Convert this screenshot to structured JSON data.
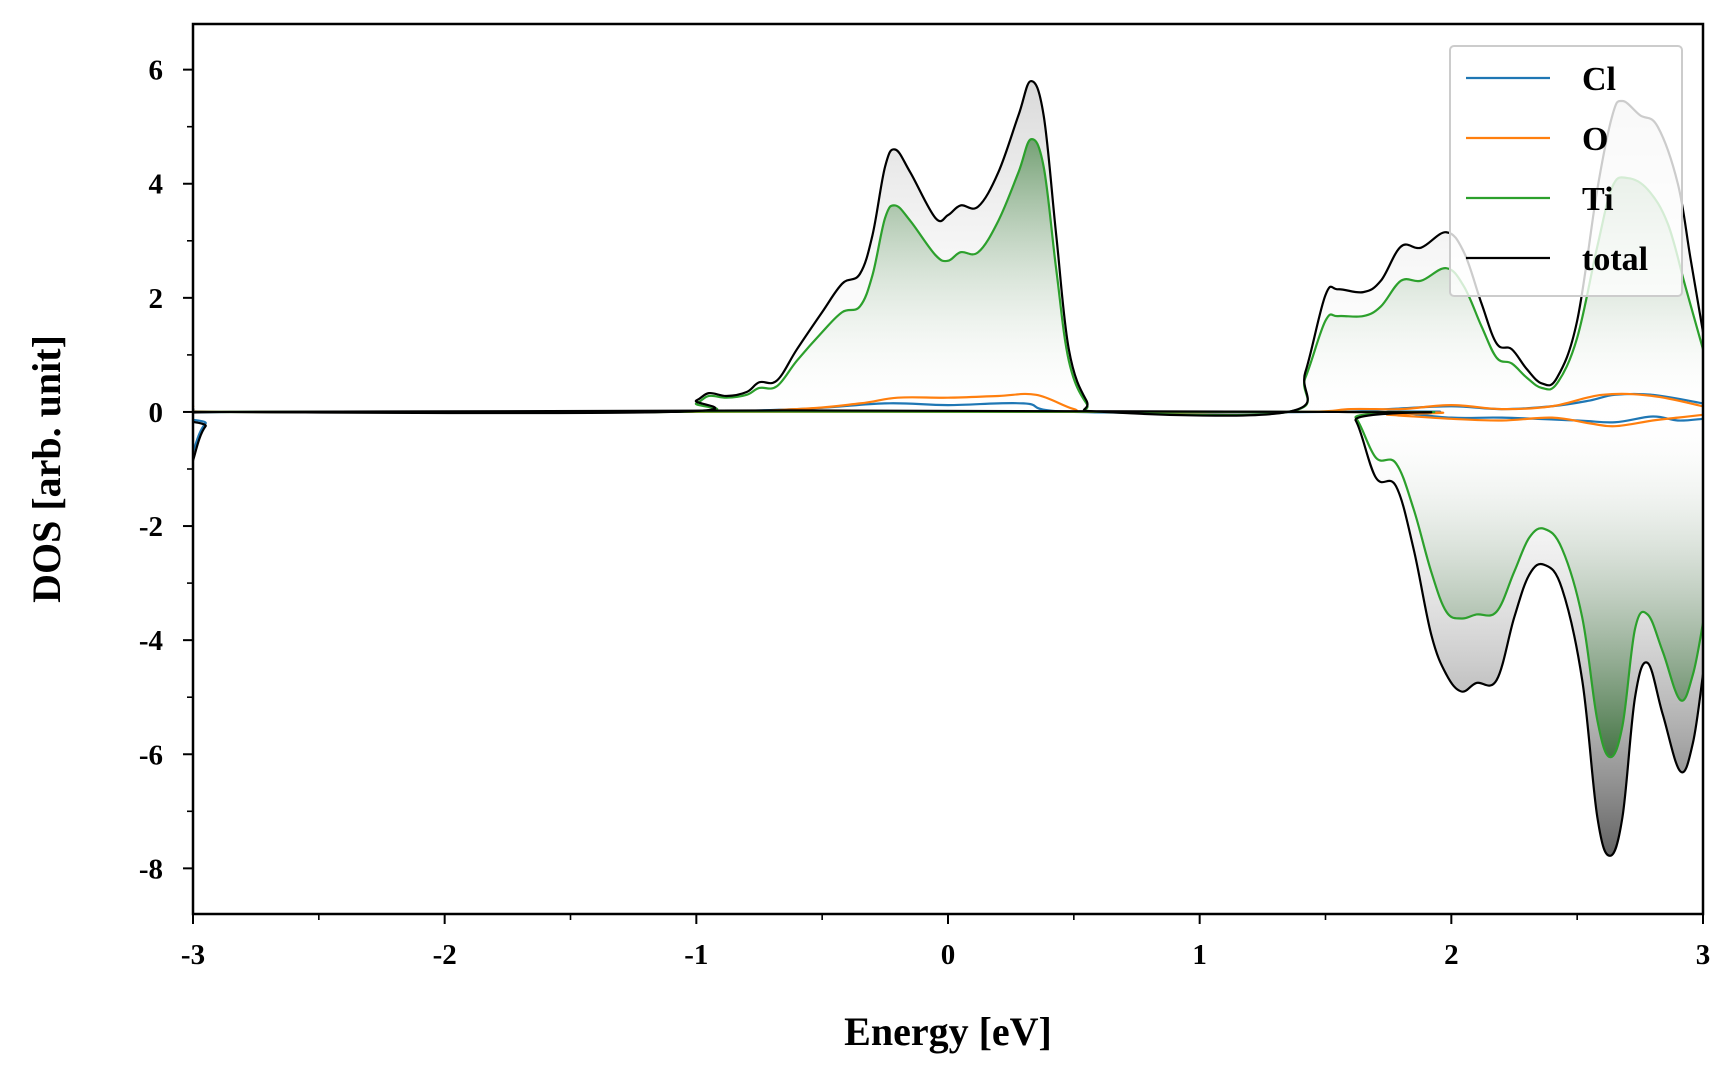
{
  "chart_data": {
    "type": "line",
    "xlabel": "Energy [eV]",
    "ylabel": "DOS [arb. unit]",
    "xlim": [
      -3,
      3
    ],
    "ylim": [
      -8.8,
      6.8
    ],
    "x_ticks": [
      -3,
      -2,
      -1,
      0,
      1,
      2,
      3
    ],
    "x_tick_labels": [
      "-3",
      "-2",
      "-1",
      "0",
      "1",
      "2",
      "3"
    ],
    "y_ticks": [
      -8,
      -6,
      -4,
      -2,
      0,
      2,
      4,
      6
    ],
    "y_tick_labels": [
      "-8",
      "-6",
      "-4",
      "-2",
      "0",
      "2",
      "4",
      "6"
    ],
    "grid": false,
    "legend_position": "top-right",
    "fill_under": [
      "total",
      "Ti"
    ],
    "series": [
      {
        "name": "Cl",
        "color": "#1f77b4",
        "up": [
          [
            -3,
            0.05
          ],
          [
            -2.9,
            0
          ],
          [
            1.5,
            0
          ],
          [
            1.75,
            0.05
          ],
          [
            2.0,
            0.1
          ],
          [
            2.2,
            0.05
          ],
          [
            2.4,
            0.1
          ],
          [
            2.55,
            0.2
          ],
          [
            2.65,
            0.3
          ],
          [
            2.8,
            0.3
          ],
          [
            3,
            0.15
          ]
        ],
        "down": [
          [
            -3,
            -0.7
          ],
          [
            -2.95,
            -0.2
          ],
          [
            -2.85,
            0
          ],
          [
            1.55,
            0
          ],
          [
            1.75,
            0.0
          ],
          [
            2.0,
            -0.1
          ],
          [
            2.2,
            -0.1
          ],
          [
            2.5,
            -0.15
          ],
          [
            2.65,
            -0.18
          ],
          [
            2.8,
            -0.08
          ],
          [
            2.9,
            -0.15
          ],
          [
            3,
            -0.12
          ]
        ],
        "up_peaks": [
          [
            -1.2,
            0
          ],
          [
            -0.6,
            0.05
          ],
          [
            -0.25,
            0.15
          ],
          [
            0,
            0.12
          ],
          [
            0.3,
            0.15
          ],
          [
            0.5,
            0
          ]
        ]
      },
      {
        "name": "O",
        "color": "#ff7f0e",
        "up": [
          [
            -3,
            0.1
          ],
          [
            -2.9,
            0
          ],
          [
            -1.1,
            0
          ],
          [
            -0.6,
            0.05
          ],
          [
            -0.35,
            0.15
          ],
          [
            -0.2,
            0.25
          ],
          [
            0,
            0.25
          ],
          [
            0.2,
            0.28
          ],
          [
            0.35,
            0.3
          ],
          [
            0.5,
            0.05
          ],
          [
            0.6,
            0
          ],
          [
            1.4,
            0
          ],
          [
            1.6,
            0.05
          ],
          [
            1.8,
            0.05
          ],
          [
            2.0,
            0.12
          ],
          [
            2.2,
            0.05
          ],
          [
            2.4,
            0.1
          ],
          [
            2.6,
            0.3
          ],
          [
            2.8,
            0.28
          ],
          [
            3,
            0.1
          ]
        ],
        "down": [
          [
            -3,
            0
          ],
          [
            1.55,
            0
          ],
          [
            1.75,
            -0.05
          ],
          [
            2.0,
            -0.12
          ],
          [
            2.2,
            -0.15
          ],
          [
            2.4,
            -0.1
          ],
          [
            2.55,
            -0.2
          ],
          [
            2.65,
            -0.25
          ],
          [
            2.8,
            -0.15
          ],
          [
            2.9,
            -0.1
          ],
          [
            3,
            -0.05
          ]
        ]
      },
      {
        "name": "Ti",
        "color": "#2ca02c",
        "up": [
          [
            -3,
            0
          ],
          [
            -1.1,
            0
          ],
          [
            -1.0,
            0.15
          ],
          [
            -0.95,
            0.28
          ],
          [
            -0.88,
            0.25
          ],
          [
            -0.8,
            0.3
          ],
          [
            -0.75,
            0.42
          ],
          [
            -0.68,
            0.45
          ],
          [
            -0.6,
            0.9
          ],
          [
            -0.5,
            1.4
          ],
          [
            -0.42,
            1.75
          ],
          [
            -0.35,
            1.85
          ],
          [
            -0.3,
            2.4
          ],
          [
            -0.25,
            3.4
          ],
          [
            -0.21,
            3.62
          ],
          [
            -0.15,
            3.35
          ],
          [
            -0.05,
            2.75
          ],
          [
            0.0,
            2.65
          ],
          [
            0.05,
            2.8
          ],
          [
            0.12,
            2.8
          ],
          [
            0.2,
            3.35
          ],
          [
            0.28,
            4.2
          ],
          [
            0.33,
            4.78
          ],
          [
            0.38,
            4.3
          ],
          [
            0.43,
            2.5
          ],
          [
            0.48,
            0.9
          ],
          [
            0.55,
            0.15
          ],
          [
            0.62,
            0
          ],
          [
            1.35,
            0
          ],
          [
            1.42,
            0.6
          ],
          [
            1.5,
            1.6
          ],
          [
            1.55,
            1.68
          ],
          [
            1.65,
            1.68
          ],
          [
            1.72,
            1.85
          ],
          [
            1.8,
            2.3
          ],
          [
            1.88,
            2.3
          ],
          [
            1.98,
            2.52
          ],
          [
            2.05,
            2.2
          ],
          [
            2.12,
            1.5
          ],
          [
            2.18,
            0.95
          ],
          [
            2.24,
            0.85
          ],
          [
            2.3,
            0.6
          ],
          [
            2.36,
            0.42
          ],
          [
            2.42,
            0.5
          ],
          [
            2.5,
            1.3
          ],
          [
            2.58,
            2.9
          ],
          [
            2.64,
            3.95
          ],
          [
            2.7,
            4.1
          ],
          [
            2.78,
            3.9
          ],
          [
            2.86,
            3.3
          ],
          [
            2.93,
            2.2
          ],
          [
            3,
            1.1
          ]
        ],
        "down": [
          [
            -3,
            0
          ],
          [
            1.55,
            0
          ],
          [
            1.62,
            -0.1
          ],
          [
            1.7,
            -0.8
          ],
          [
            1.78,
            -0.9
          ],
          [
            1.85,
            -1.7
          ],
          [
            1.92,
            -2.8
          ],
          [
            1.98,
            -3.5
          ],
          [
            2.04,
            -3.62
          ],
          [
            2.1,
            -3.55
          ],
          [
            2.18,
            -3.5
          ],
          [
            2.25,
            -2.8
          ],
          [
            2.31,
            -2.2
          ],
          [
            2.37,
            -2.05
          ],
          [
            2.44,
            -2.4
          ],
          [
            2.52,
            -3.6
          ],
          [
            2.58,
            -5.4
          ],
          [
            2.63,
            -6.05
          ],
          [
            2.68,
            -5.5
          ],
          [
            2.73,
            -3.8
          ],
          [
            2.78,
            -3.55
          ],
          [
            2.84,
            -4.2
          ],
          [
            2.91,
            -5.05
          ],
          [
            2.96,
            -4.6
          ],
          [
            3,
            -3.7
          ]
        ]
      },
      {
        "name": "total",
        "color": "#000000",
        "up": [
          [
            -3,
            0.05
          ],
          [
            -2.9,
            0
          ],
          [
            -1.1,
            0
          ],
          [
            -1.0,
            0.2
          ],
          [
            -0.95,
            0.33
          ],
          [
            -0.88,
            0.28
          ],
          [
            -0.8,
            0.35
          ],
          [
            -0.75,
            0.52
          ],
          [
            -0.68,
            0.55
          ],
          [
            -0.6,
            1.1
          ],
          [
            -0.5,
            1.75
          ],
          [
            -0.42,
            2.25
          ],
          [
            -0.35,
            2.42
          ],
          [
            -0.3,
            3.1
          ],
          [
            -0.25,
            4.3
          ],
          [
            -0.21,
            4.6
          ],
          [
            -0.15,
            4.2
          ],
          [
            -0.05,
            3.4
          ],
          [
            0.0,
            3.45
          ],
          [
            0.05,
            3.62
          ],
          [
            0.12,
            3.6
          ],
          [
            0.2,
            4.2
          ],
          [
            0.28,
            5.2
          ],
          [
            0.33,
            5.8
          ],
          [
            0.38,
            5.2
          ],
          [
            0.43,
            3.1
          ],
          [
            0.48,
            1.1
          ],
          [
            0.55,
            0.2
          ],
          [
            0.62,
            0
          ],
          [
            1.35,
            0
          ],
          [
            1.42,
            0.7
          ],
          [
            1.5,
            2.05
          ],
          [
            1.55,
            2.15
          ],
          [
            1.65,
            2.1
          ],
          [
            1.72,
            2.3
          ],
          [
            1.8,
            2.9
          ],
          [
            1.88,
            2.88
          ],
          [
            1.98,
            3.15
          ],
          [
            2.05,
            2.8
          ],
          [
            2.12,
            1.9
          ],
          [
            2.18,
            1.2
          ],
          [
            2.24,
            1.1
          ],
          [
            2.3,
            0.75
          ],
          [
            2.36,
            0.5
          ],
          [
            2.42,
            0.6
          ],
          [
            2.5,
            1.6
          ],
          [
            2.58,
            3.9
          ],
          [
            2.64,
            5.2
          ],
          [
            2.68,
            5.45
          ],
          [
            2.75,
            5.2
          ],
          [
            2.82,
            5.0
          ],
          [
            2.9,
            4.0
          ],
          [
            2.95,
            2.7
          ],
          [
            3,
            1.4
          ]
        ],
        "down": [
          [
            -3,
            -0.85
          ],
          [
            -2.95,
            -0.25
          ],
          [
            -2.85,
            0
          ],
          [
            1.55,
            0
          ],
          [
            1.62,
            -0.15
          ],
          [
            1.7,
            -1.15
          ],
          [
            1.78,
            -1.3
          ],
          [
            1.85,
            -2.4
          ],
          [
            1.92,
            -3.9
          ],
          [
            1.98,
            -4.6
          ],
          [
            2.04,
            -4.9
          ],
          [
            2.1,
            -4.75
          ],
          [
            2.18,
            -4.7
          ],
          [
            2.25,
            -3.6
          ],
          [
            2.31,
            -2.85
          ],
          [
            2.37,
            -2.68
          ],
          [
            2.44,
            -3.1
          ],
          [
            2.52,
            -4.7
          ],
          [
            2.58,
            -7.1
          ],
          [
            2.63,
            -7.78
          ],
          [
            2.68,
            -7.1
          ],
          [
            2.73,
            -5.0
          ],
          [
            2.78,
            -4.4
          ],
          [
            2.84,
            -5.3
          ],
          [
            2.91,
            -6.3
          ],
          [
            2.96,
            -5.8
          ],
          [
            3,
            -4.6
          ]
        ]
      }
    ]
  }
}
